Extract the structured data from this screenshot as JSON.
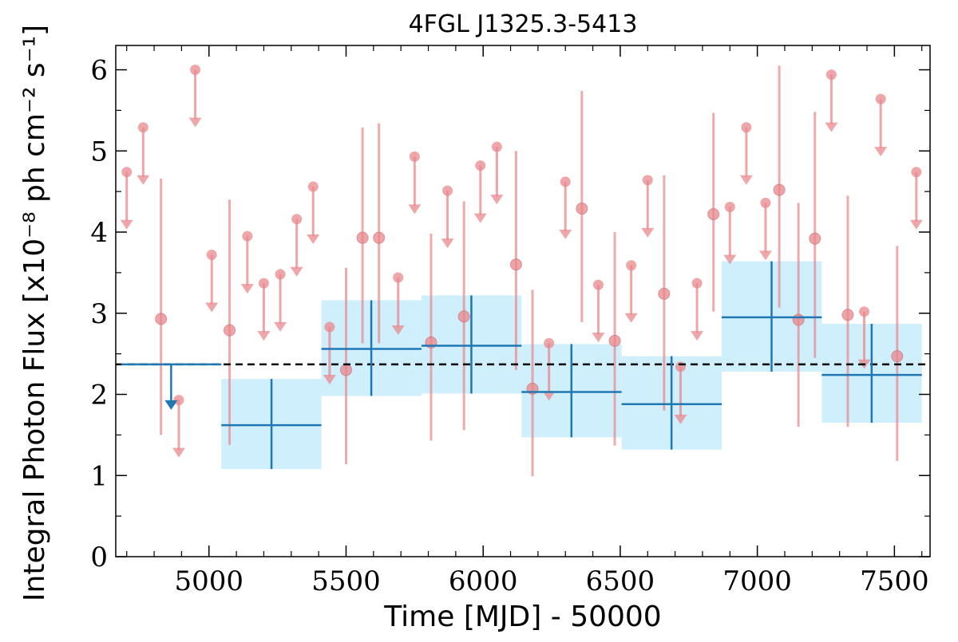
{
  "chart_data": {
    "type": "scatter",
    "title": "4FGL J1325.3-5413",
    "xlabel": "Time [MJD] - 50000",
    "ylabel": "Integral Photon Flux [x10⁻⁸ ph cm⁻² s⁻¹]",
    "xlim": [
      4660,
      7630
    ],
    "ylim": [
      0,
      6.3
    ],
    "xticks": [
      5000,
      5500,
      6000,
      6500,
      7000,
      7500
    ],
    "yticks": [
      0,
      1,
      2,
      3,
      4,
      5,
      6
    ],
    "xtick_labels": [
      "5000",
      "5500",
      "6000",
      "6500",
      "7000",
      "7500"
    ],
    "ytick_labels": [
      "0",
      "1",
      "2",
      "3",
      "4",
      "5",
      "6"
    ],
    "grid": false,
    "legend": "none",
    "colors": {
      "short_bins": "#e8888c",
      "long_bins": "#1f77b4",
      "band": "#cdeefc",
      "mean_line": "#000000"
    },
    "mean_flux": 2.37,
    "series": [
      {
        "bin": "short",
        "detections": [
          {
            "x": 4825,
            "y": 2.93,
            "ylo": 1.5,
            "yhi": 4.66
          },
          {
            "x": 5075,
            "y": 2.79,
            "ylo": 1.38,
            "yhi": 4.4
          },
          {
            "x": 5500,
            "y": 2.3,
            "ylo": 1.14,
            "yhi": 3.56
          },
          {
            "x": 5560,
            "y": 3.93,
            "ylo": 2.63,
            "yhi": 5.29
          },
          {
            "x": 5620,
            "y": 3.93,
            "ylo": 2.63,
            "yhi": 5.34
          },
          {
            "x": 5810,
            "y": 2.64,
            "ylo": 1.43,
            "yhi": 3.98
          },
          {
            "x": 5930,
            "y": 2.96,
            "ylo": 1.56,
            "yhi": 4.38
          },
          {
            "x": 6120,
            "y": 3.6,
            "ylo": 2.3,
            "yhi": 5.0
          },
          {
            "x": 6180,
            "y": 2.07,
            "ylo": 0.99,
            "yhi": 3.29
          },
          {
            "x": 6360,
            "y": 4.29,
            "ylo": 2.89,
            "yhi": 5.74
          },
          {
            "x": 6480,
            "y": 2.66,
            "ylo": 1.37,
            "yhi": 4.0
          },
          {
            "x": 6660,
            "y": 3.24,
            "ylo": 1.8,
            "yhi": 4.7
          },
          {
            "x": 6840,
            "y": 4.22,
            "ylo": 3.02,
            "yhi": 5.47
          },
          {
            "x": 7080,
            "y": 4.52,
            "ylo": 3.07,
            "yhi": 6.05
          },
          {
            "x": 7150,
            "y": 2.92,
            "ylo": 1.6,
            "yhi": 4.36
          },
          {
            "x": 7210,
            "y": 3.92,
            "ylo": 2.45,
            "yhi": 5.48
          },
          {
            "x": 7330,
            "y": 2.98,
            "ylo": 1.6,
            "yhi": 4.45
          },
          {
            "x": 7510,
            "y": 2.47,
            "ylo": 1.18,
            "yhi": 3.83
          }
        ],
        "upper_limits": [
          {
            "x": 4700,
            "y": 4.74
          },
          {
            "x": 4760,
            "y": 5.29
          },
          {
            "x": 4890,
            "y": 1.93
          },
          {
            "x": 4950,
            "y": 6.0
          },
          {
            "x": 5010,
            "y": 3.72
          },
          {
            "x": 5140,
            "y": 3.95
          },
          {
            "x": 5200,
            "y": 3.37
          },
          {
            "x": 5260,
            "y": 3.48
          },
          {
            "x": 5320,
            "y": 4.16
          },
          {
            "x": 5380,
            "y": 4.56
          },
          {
            "x": 5440,
            "y": 2.83
          },
          {
            "x": 5690,
            "y": 3.44
          },
          {
            "x": 5750,
            "y": 4.93
          },
          {
            "x": 5870,
            "y": 4.51
          },
          {
            "x": 5990,
            "y": 4.82
          },
          {
            "x": 6050,
            "y": 5.05
          },
          {
            "x": 6240,
            "y": 2.63
          },
          {
            "x": 6300,
            "y": 4.62
          },
          {
            "x": 6420,
            "y": 3.35
          },
          {
            "x": 6540,
            "y": 3.59
          },
          {
            "x": 6600,
            "y": 4.64
          },
          {
            "x": 6720,
            "y": 2.34
          },
          {
            "x": 6780,
            "y": 3.37
          },
          {
            "x": 6900,
            "y": 4.31
          },
          {
            "x": 6960,
            "y": 5.29
          },
          {
            "x": 7030,
            "y": 4.36
          },
          {
            "x": 7270,
            "y": 5.94
          },
          {
            "x": 7390,
            "y": 3.02
          },
          {
            "x": 7450,
            "y": 5.64
          },
          {
            "x": 7580,
            "y": 4.74
          }
        ]
      },
      {
        "bin": "long",
        "upper_limits": [
          {
            "x1": 4680,
            "x2": 5045,
            "xc": 4862,
            "y": 2.37
          }
        ],
        "detections": [
          {
            "x1": 5045,
            "x2": 5410,
            "xc": 5228,
            "y": 1.62,
            "ylo": 1.08,
            "yhi": 2.19
          },
          {
            "x1": 5410,
            "x2": 5775,
            "xc": 5592,
            "y": 2.56,
            "ylo": 1.98,
            "yhi": 3.16
          },
          {
            "x1": 5775,
            "x2": 6140,
            "xc": 5957,
            "y": 2.6,
            "ylo": 2.01,
            "yhi": 3.22
          },
          {
            "x1": 6140,
            "x2": 6505,
            "xc": 6322,
            "y": 2.03,
            "ylo": 1.47,
            "yhi": 2.62
          },
          {
            "x1": 6505,
            "x2": 6870,
            "xc": 6687,
            "y": 1.88,
            "ylo": 1.32,
            "yhi": 2.47
          },
          {
            "x1": 6870,
            "x2": 7235,
            "xc": 7052,
            "y": 2.95,
            "ylo": 2.28,
            "yhi": 3.64
          },
          {
            "x1": 7235,
            "x2": 7600,
            "xc": 7417,
            "y": 2.24,
            "ylo": 1.65,
            "yhi": 2.87
          }
        ]
      }
    ]
  }
}
